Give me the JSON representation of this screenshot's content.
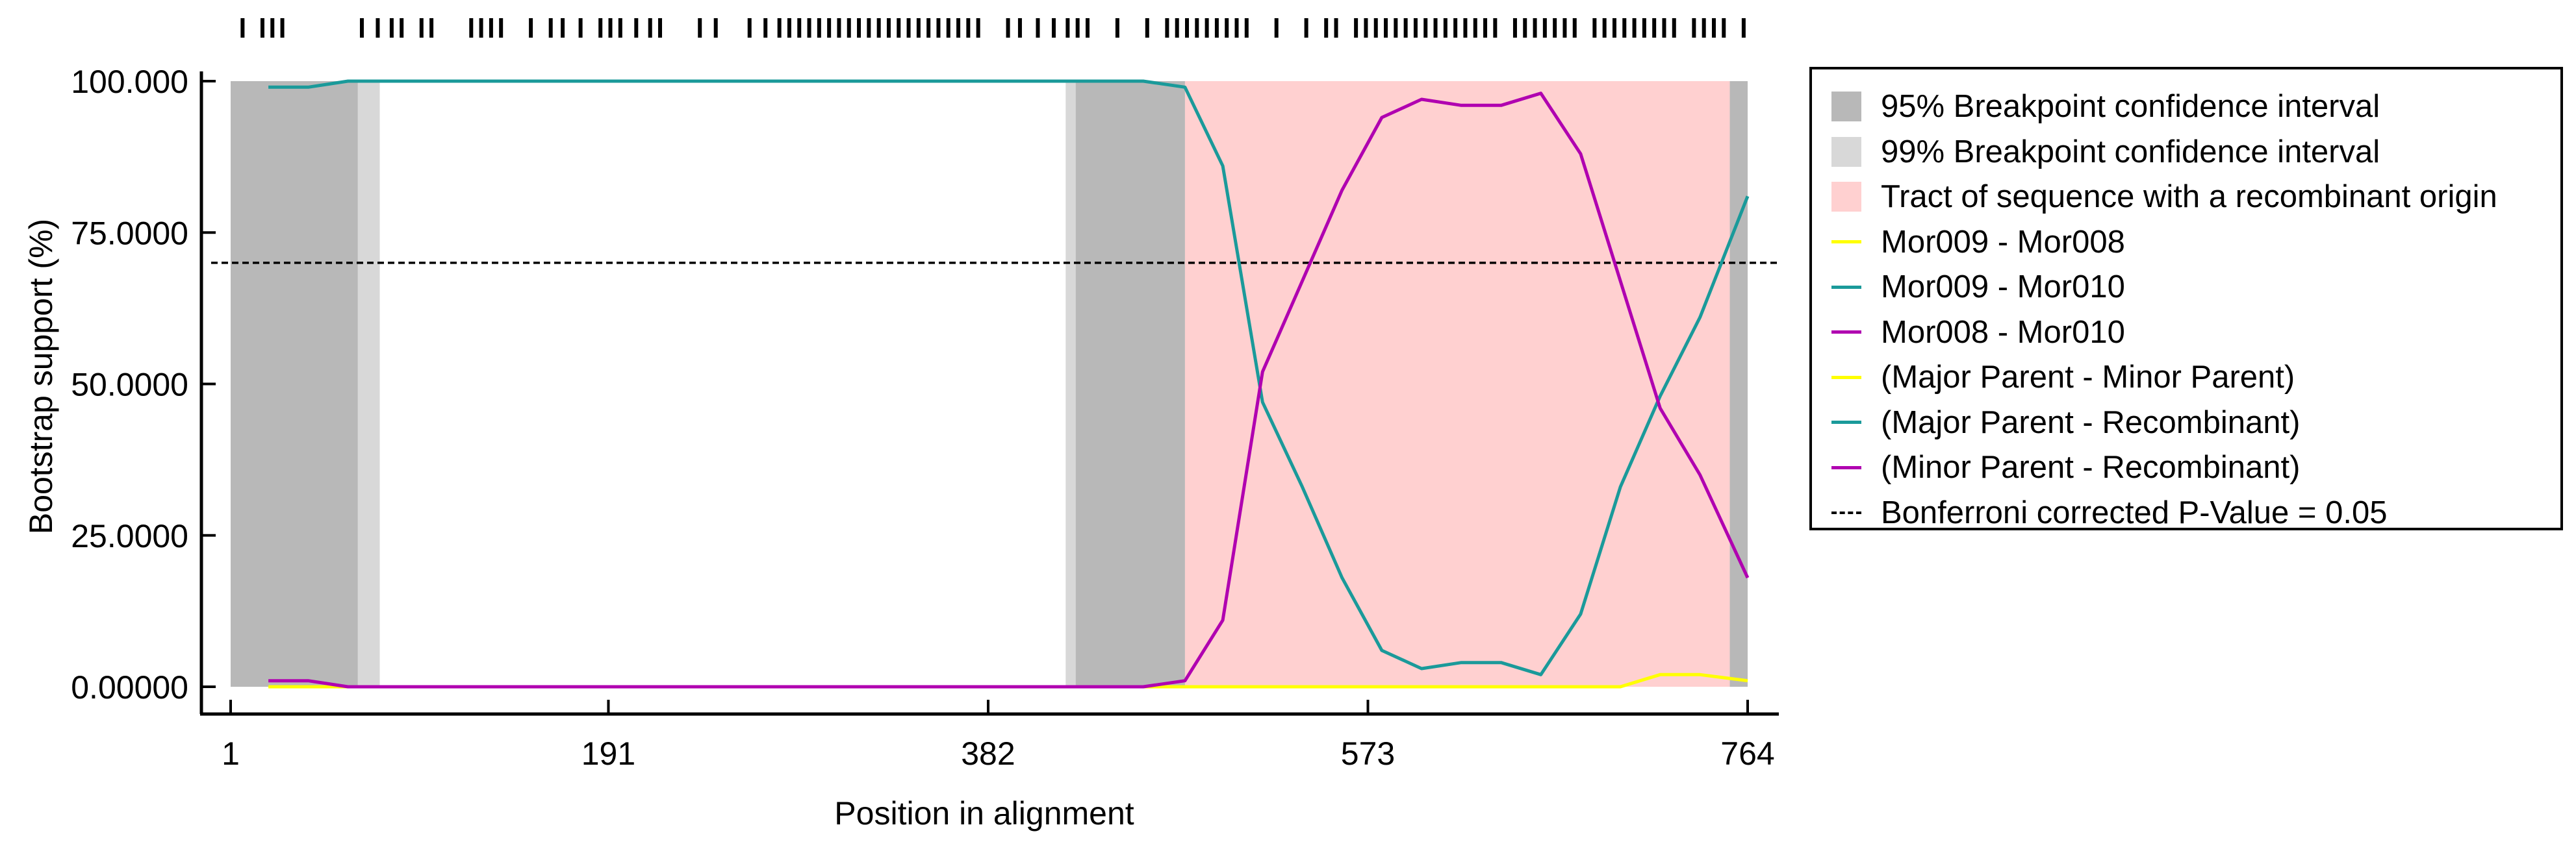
{
  "chart_data": {
    "type": "line",
    "xlabel": "Position in alignment",
    "ylabel": "Bootstrap support (%)",
    "xlim": [
      1,
      764
    ],
    "ylim": [
      0,
      100
    ],
    "x_ticks": [
      "1",
      "191",
      "382",
      "573",
      "764"
    ],
    "y_ticks": [
      "0.00000",
      "25.0000",
      "50.0000",
      "75.0000",
      "100.000"
    ],
    "grid": false,
    "legend_position": "right",
    "threshold": {
      "label": "Bonferroni corrected P-Value = 0.05",
      "value": 70
    },
    "regions": [
      {
        "label": "95% Breakpoint confidence interval",
        "color": "#b8b8b8",
        "spans": [
          [
            1,
            65
          ],
          [
            426,
            481
          ],
          [
            755,
            764
          ]
        ]
      },
      {
        "label": "99% Breakpoint confidence interval",
        "color": "#d8d8d8",
        "spans": [
          [
            65,
            76
          ],
          [
            421,
            426
          ]
        ]
      },
      {
        "label": "Tract of sequence with a recombinant origin",
        "color": "#ffd0d0",
        "spans": [
          [
            481,
            755
          ]
        ]
      }
    ],
    "series": [
      {
        "name": "Mor009 - Mor008",
        "color": "#ffff00",
        "x": [
          20,
          40,
          60,
          80,
          100,
          150,
          200,
          250,
          300,
          350,
          400,
          430,
          460,
          481,
          500,
          520,
          540,
          560,
          580,
          600,
          620,
          640,
          660,
          680,
          700,
          720,
          740,
          764
        ],
        "y": [
          0,
          0,
          0,
          0,
          0,
          0,
          0,
          0,
          0,
          0,
          0,
          0,
          0,
          0,
          0,
          0,
          0,
          0,
          0,
          0,
          0,
          0,
          0,
          0,
          0,
          2,
          2,
          1
        ]
      },
      {
        "name": "Mor009 - Mor010",
        "color": "#1a9a9a",
        "x": [
          20,
          40,
          60,
          80,
          100,
          150,
          200,
          250,
          300,
          350,
          400,
          430,
          460,
          481,
          500,
          520,
          540,
          560,
          580,
          600,
          620,
          640,
          660,
          680,
          700,
          720,
          740,
          764
        ],
        "y": [
          99,
          99,
          100,
          100,
          100,
          100,
          100,
          100,
          100,
          100,
          100,
          100,
          100,
          99,
          86,
          47,
          33,
          18,
          6,
          3,
          4,
          4,
          2,
          12,
          33,
          48,
          61,
          81
        ]
      },
      {
        "name": "Mor008 - Mor010",
        "color": "#b000b0",
        "x": [
          20,
          40,
          60,
          80,
          100,
          150,
          200,
          250,
          300,
          350,
          400,
          430,
          460,
          481,
          500,
          520,
          540,
          560,
          580,
          600,
          620,
          640,
          660,
          680,
          700,
          720,
          740,
          764
        ],
        "y": [
          1,
          1,
          0,
          0,
          0,
          0,
          0,
          0,
          0,
          0,
          0,
          0,
          0,
          1,
          11,
          52,
          67,
          82,
          94,
          97,
          96,
          96,
          98,
          88,
          67,
          46,
          35,
          18
        ]
      }
    ],
    "legend_entries": [
      {
        "label": "95% Breakpoint confidence interval",
        "kind": "box",
        "color": "#b8b8b8"
      },
      {
        "label": "99% Breakpoint confidence interval",
        "kind": "box",
        "color": "#d8d8d8"
      },
      {
        "label": "Tract of sequence with a recombinant origin",
        "kind": "box",
        "color": "#ffd0d0"
      },
      {
        "label": "Mor009 - Mor008",
        "kind": "line",
        "color": "#ffff00"
      },
      {
        "label": "Mor009 - Mor010",
        "kind": "line",
        "color": "#1a9a9a"
      },
      {
        "label": "Mor008 - Mor010",
        "kind": "line",
        "color": "#b000b0"
      },
      {
        "label": "(Major Parent - Minor Parent)",
        "kind": "line",
        "color": "#ffff00"
      },
      {
        "label": "(Major Parent - Recombinant)",
        "kind": "line",
        "color": "#1a9a9a"
      },
      {
        "label": "(Minor Parent - Recombinant)",
        "kind": "line",
        "color": "#b000b0"
      },
      {
        "label": "Bonferroni corrected P-Value = 0.05",
        "kind": "dashed",
        "color": "#000000"
      }
    ],
    "informative_sites": [
      7,
      17,
      22,
      27,
      67,
      75,
      82,
      87,
      97,
      102,
      122,
      127,
      132,
      137,
      152,
      162,
      168,
      177,
      187,
      192,
      197,
      205,
      212,
      217,
      237,
      245,
      262,
      270,
      277,
      282,
      287,
      292,
      297,
      302,
      307,
      312,
      317,
      322,
      327,
      332,
      337,
      342,
      347,
      352,
      357,
      362,
      367,
      372,
      377,
      392,
      398,
      407,
      415,
      422,
      427,
      432,
      447,
      462,
      472,
      477,
      482,
      487,
      492,
      497,
      502,
      507,
      512,
      527,
      542,
      552,
      557,
      567,
      572,
      577,
      582,
      587,
      592,
      597,
      602,
      607,
      612,
      617,
      622,
      627,
      632,
      637,
      647,
      652,
      657,
      662,
      667,
      672,
      677,
      687,
      692,
      697,
      702,
      707,
      712,
      717,
      722,
      727,
      737,
      742,
      747,
      752,
      762
    ]
  }
}
